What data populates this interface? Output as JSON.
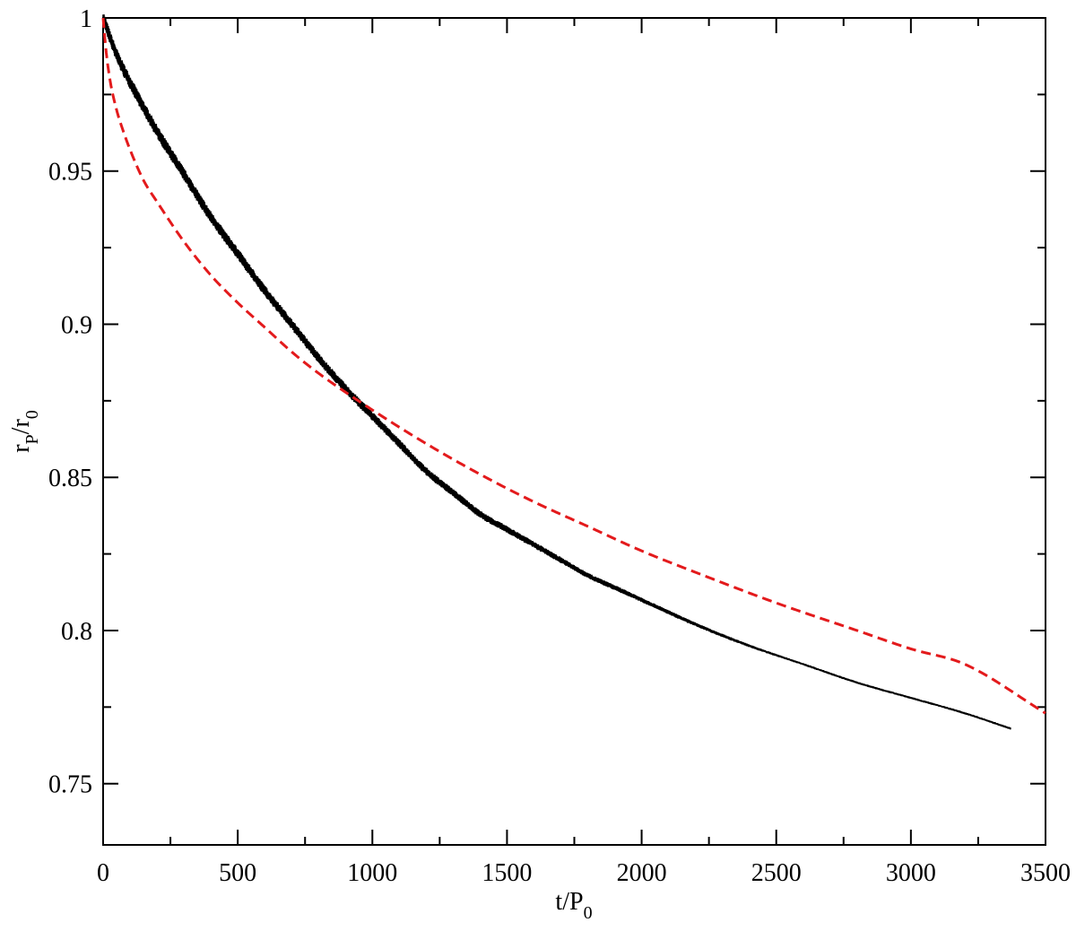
{
  "chart_data": {
    "type": "line",
    "title": "",
    "xlabel": "t/P",
    "xlabel_sub": "0",
    "ylabel_main": "r",
    "ylabel_sub1": "P",
    "ylabel_mid": "/r",
    "ylabel_sub2": "0",
    "xlim": [
      0,
      3500
    ],
    "ylim": [
      0.73,
      1.0
    ],
    "xticks": [
      0,
      500,
      1000,
      1500,
      2000,
      2500,
      3000,
      3500
    ],
    "xtick_labels": [
      "0",
      "500",
      "1000",
      "1500",
      "2000",
      "2500",
      "3000",
      "3500"
    ],
    "yticks": [
      0.75,
      0.8,
      0.85,
      0.9,
      0.95,
      1.0
    ],
    "ytick_labels": [
      "0.75",
      "0.8",
      "0.85",
      "0.9",
      "0.95",
      "1"
    ],
    "grid": false,
    "legend": "none",
    "series": [
      {
        "style": "solid-noisy",
        "color": "#000000",
        "x": [
          0,
          50,
          100,
          200,
          300,
          400,
          500,
          600,
          700,
          800,
          900,
          1000,
          1100,
          1200,
          1300,
          1400,
          1500,
          1600,
          1700,
          1800,
          1900,
          2000,
          2200,
          2400,
          2600,
          2800,
          3000,
          3200,
          3370
        ],
        "y": [
          1.0,
          0.988,
          0.979,
          0.963,
          0.949,
          0.935,
          0.923,
          0.911,
          0.9,
          0.889,
          0.879,
          0.87,
          0.861,
          0.852,
          0.845,
          0.838,
          0.833,
          0.828,
          0.823,
          0.818,
          0.814,
          0.81,
          0.802,
          0.795,
          0.789,
          0.783,
          0.778,
          0.773,
          0.768
        ]
      },
      {
        "style": "dashed",
        "color": "#e31a1c",
        "x": [
          0,
          10,
          25,
          50,
          75,
          100,
          150,
          200,
          300,
          400,
          500,
          600,
          700,
          800,
          1000,
          1200,
          1400,
          1600,
          1800,
          2000,
          2200,
          2500,
          2800,
          3000,
          3200,
          3500
        ],
        "y": [
          1.0,
          0.99,
          0.98,
          0.97,
          0.963,
          0.957,
          0.947,
          0.94,
          0.927,
          0.916,
          0.907,
          0.899,
          0.891,
          0.884,
          0.872,
          0.861,
          0.851,
          0.842,
          0.834,
          0.826,
          0.819,
          0.809,
          0.8,
          0.794,
          0.789,
          0.773
        ]
      }
    ]
  }
}
